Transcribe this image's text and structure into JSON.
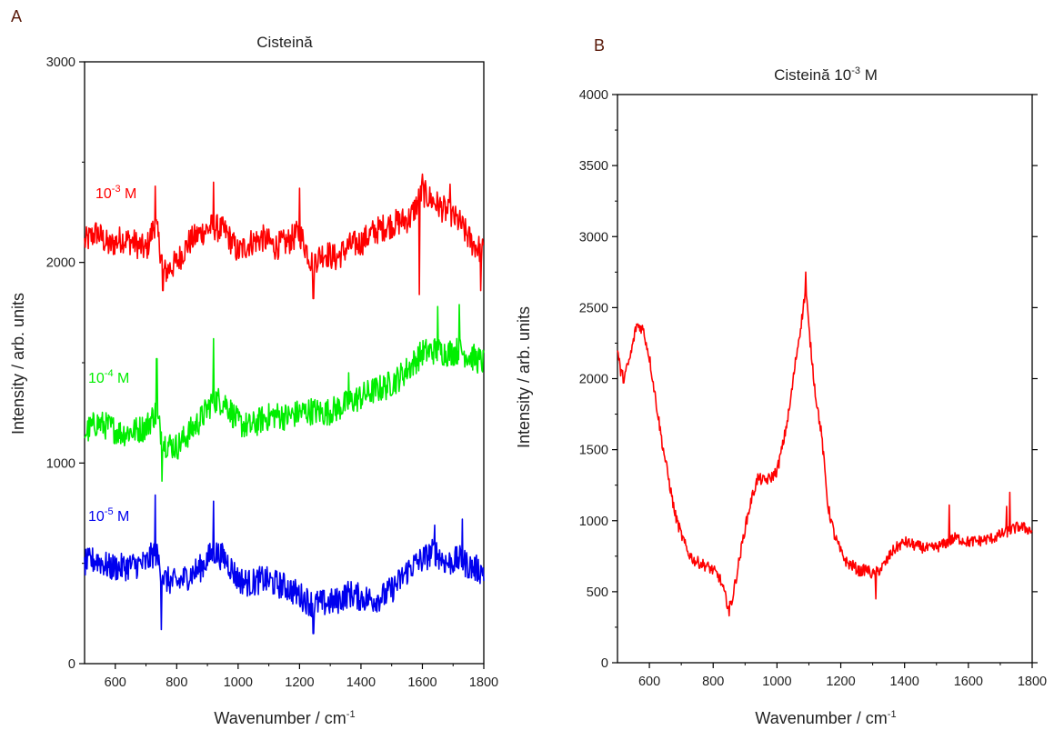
{
  "chart_data": [
    {
      "panel": "A",
      "type": "line",
      "title": "Cisteină",
      "xlabel": "Wavenumber / cm",
      "xlabel_sup": "-1",
      "ylabel": "Intensity / arb. units",
      "xlim": [
        500,
        1800
      ],
      "ylim": [
        0,
        3000
      ],
      "xticks": [
        600,
        800,
        1000,
        1200,
        1400,
        1600,
        1800
      ],
      "yticks": [
        0,
        1000,
        2000,
        3000
      ],
      "grid": false,
      "series": [
        {
          "label_base": "10",
          "label_sup": "-3",
          "label_unit": " M",
          "color": "#ff0000",
          "x": [
            500,
            540,
            580,
            620,
            660,
            700,
            730,
            760,
            800,
            840,
            880,
            920,
            960,
            1000,
            1040,
            1080,
            1120,
            1160,
            1200,
            1240,
            1280,
            1320,
            1360,
            1400,
            1440,
            1480,
            1520,
            1560,
            1600,
            1640,
            1680,
            1720,
            1760,
            1800
          ],
          "y": [
            2100,
            2150,
            2080,
            2120,
            2100,
            2060,
            2200,
            1950,
            2000,
            2100,
            2150,
            2180,
            2150,
            2050,
            2100,
            2120,
            2080,
            2100,
            2150,
            2000,
            2050,
            2020,
            2080,
            2100,
            2150,
            2180,
            2200,
            2220,
            2350,
            2300,
            2250,
            2200,
            2100,
            2050
          ],
          "spikes": [
            [
              730,
              2380
            ],
            [
              755,
              1860
            ],
            [
              920,
              2400
            ],
            [
              1200,
              2370
            ],
            [
              1245,
              1820
            ],
            [
              1590,
              1840
            ],
            [
              1600,
              2440
            ],
            [
              1690,
              2390
            ],
            [
              1790,
              1860
            ]
          ]
        },
        {
          "label_base": "10",
          "label_sup": "-4",
          "label_unit": " M",
          "color": "#00ee00",
          "x": [
            500,
            540,
            580,
            620,
            660,
            700,
            730,
            760,
            800,
            840,
            880,
            920,
            960,
            1000,
            1040,
            1080,
            1120,
            1160,
            1200,
            1240,
            1280,
            1320,
            1360,
            1400,
            1440,
            1480,
            1520,
            1560,
            1600,
            1640,
            1680,
            1720,
            1760,
            1800
          ],
          "y": [
            1150,
            1200,
            1180,
            1150,
            1160,
            1180,
            1250,
            1100,
            1080,
            1150,
            1220,
            1320,
            1300,
            1200,
            1180,
            1220,
            1240,
            1230,
            1250,
            1260,
            1250,
            1270,
            1300,
            1330,
            1360,
            1380,
            1420,
            1480,
            1550,
            1560,
            1550,
            1560,
            1530,
            1500
          ],
          "spikes": [
            [
              735,
              1520
            ],
            [
              752,
              910
            ],
            [
              920,
              1620
            ],
            [
              1360,
              1450
            ],
            [
              1650,
              1780
            ],
            [
              1720,
              1790
            ]
          ]
        },
        {
          "label_base": "10",
          "label_sup": "-5",
          "label_unit": " M",
          "color": "#0000ee",
          "x": [
            500,
            540,
            580,
            620,
            660,
            700,
            730,
            760,
            800,
            840,
            880,
            920,
            960,
            1000,
            1040,
            1080,
            1120,
            1160,
            1200,
            1240,
            1280,
            1320,
            1360,
            1400,
            1440,
            1480,
            1520,
            1560,
            1600,
            1640,
            1680,
            1720,
            1760,
            1800
          ],
          "y": [
            500,
            520,
            480,
            480,
            490,
            500,
            560,
            420,
            400,
            440,
            480,
            560,
            520,
            420,
            400,
            420,
            400,
            380,
            340,
            300,
            300,
            310,
            350,
            330,
            320,
            340,
            400,
            480,
            520,
            560,
            500,
            520,
            480,
            460
          ],
          "spikes": [
            [
              730,
              840
            ],
            [
              750,
              170
            ],
            [
              920,
              810
            ],
            [
              1245,
              150
            ],
            [
              1640,
              690
            ],
            [
              1730,
              720
            ]
          ]
        }
      ]
    },
    {
      "panel": "B",
      "type": "line",
      "title": "Cisteină 10",
      "title_sup": "-3",
      "title_unit": " M",
      "xlabel": "Wavenumber / cm",
      "xlabel_sup": "-1",
      "ylabel": "Intensity / arb. units",
      "xlim": [
        500,
        1800
      ],
      "ylim": [
        0,
        4000
      ],
      "xticks": [
        600,
        800,
        1000,
        1200,
        1400,
        1600,
        1800
      ],
      "yticks": [
        0,
        500,
        1000,
        1500,
        2000,
        2500,
        3000,
        3500,
        4000
      ],
      "grid": false,
      "series": [
        {
          "color": "#ff0000",
          "x": [
            500,
            510,
            520,
            540,
            560,
            580,
            600,
            620,
            640,
            660,
            680,
            700,
            720,
            740,
            760,
            780,
            800,
            820,
            840,
            850,
            860,
            880,
            900,
            920,
            940,
            960,
            980,
            1000,
            1020,
            1040,
            1060,
            1080,
            1090,
            1100,
            1120,
            1140,
            1160,
            1180,
            1200,
            1220,
            1240,
            1260,
            1280,
            1300,
            1320,
            1340,
            1360,
            1380,
            1400,
            1440,
            1480,
            1520,
            1560,
            1600,
            1640,
            1680,
            1720,
            1760,
            1800
          ],
          "y": [
            2200,
            2050,
            2000,
            2150,
            2380,
            2350,
            2150,
            1850,
            1550,
            1300,
            1050,
            900,
            780,
            720,
            700,
            680,
            650,
            600,
            450,
            380,
            450,
            700,
            950,
            1150,
            1300,
            1280,
            1300,
            1350,
            1550,
            1800,
            2150,
            2450,
            2650,
            2350,
            1900,
            1600,
            1100,
            900,
            780,
            700,
            680,
            640,
            660,
            620,
            650,
            700,
            780,
            820,
            850,
            820,
            800,
            830,
            880,
            850,
            860,
            880,
            920,
            960,
            930
          ],
          "spikes": [
            [
              1090,
              2750
            ],
            [
              850,
              330
            ],
            [
              1310,
              450
            ],
            [
              1730,
              1200
            ],
            [
              1540,
              1110
            ],
            [
              1720,
              1100
            ]
          ]
        }
      ]
    }
  ]
}
